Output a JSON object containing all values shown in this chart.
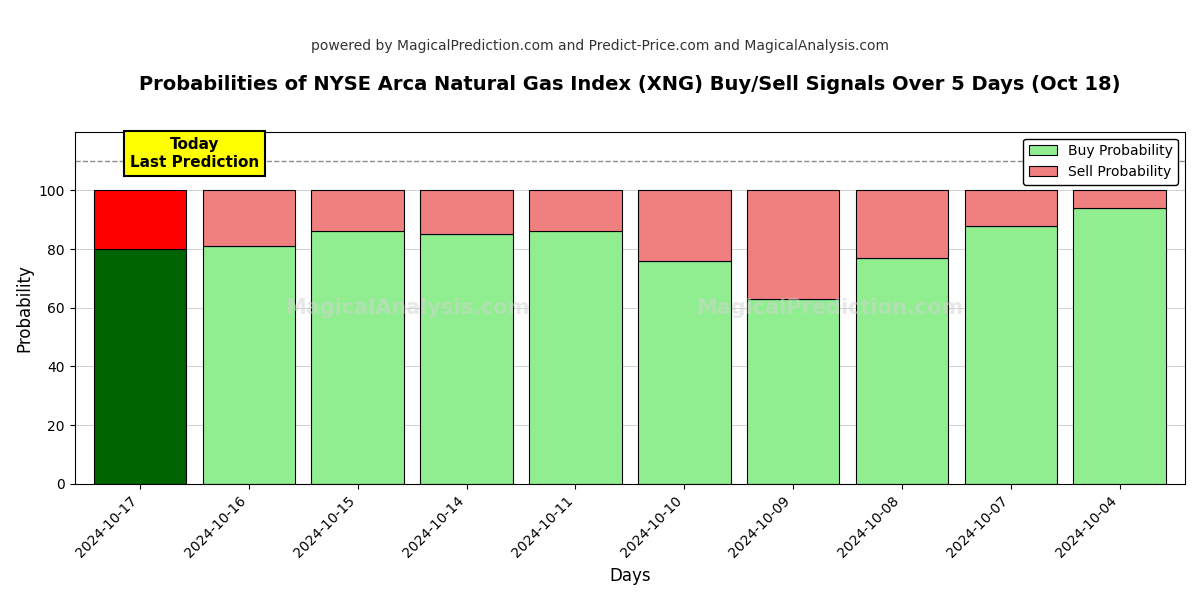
{
  "title": "Probabilities of NYSE Arca Natural Gas Index (XNG) Buy/Sell Signals Over 5 Days (Oct 18)",
  "subtitle": "powered by MagicalPrediction.com and Predict-Price.com and MagicalAnalysis.com",
  "xlabel": "Days",
  "ylabel": "Probability",
  "categories": [
    "2024-10-17",
    "2024-10-16",
    "2024-10-15",
    "2024-10-14",
    "2024-10-11",
    "2024-10-10",
    "2024-10-09",
    "2024-10-08",
    "2024-10-07",
    "2024-10-04"
  ],
  "buy_values": [
    80,
    81,
    86,
    85,
    86,
    76,
    63,
    77,
    88,
    94
  ],
  "sell_values": [
    20,
    19,
    14,
    15,
    14,
    24,
    37,
    23,
    12,
    6
  ],
  "today_buy_color": "#006400",
  "today_sell_color": "#ff0000",
  "buy_color": "#90EE90",
  "sell_color": "#F08080",
  "today_label_bg": "#ffff00",
  "today_label_text": "Today\nLast Prediction",
  "legend_buy": "Buy Probability",
  "legend_sell": "Sell Probability",
  "ylim": [
    0,
    120
  ],
  "dashed_line_y": 110,
  "watermark1": "MagicalAnalysis.com",
  "watermark2": "MagicalPrediction.com",
  "bar_edge_color": "#000000",
  "bar_linewidth": 0.8,
  "bar_width": 0.85,
  "figsize": [
    12,
    6
  ],
  "dpi": 100
}
